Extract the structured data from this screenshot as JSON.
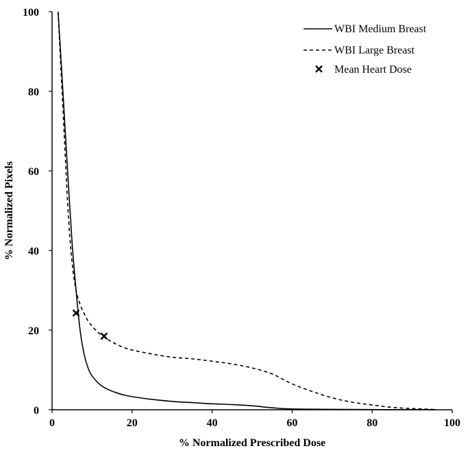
{
  "chart_data": {
    "type": "line",
    "xlabel": "% Normalized Prescribed Dose",
    "ylabel": "% Normalized Pixels",
    "xlim": [
      0,
      100
    ],
    "ylim": [
      0,
      100
    ],
    "x_ticks": [
      "0",
      "20",
      "40",
      "60",
      "80",
      "100"
    ],
    "y_ticks": [
      "0",
      "20",
      "40",
      "60",
      "80",
      "100"
    ],
    "grid": false,
    "legend_position": "top-right",
    "series": [
      {
        "name": "WBI Medium Breast",
        "line_style": "solid",
        "color": "#000000",
        "x": [
          1.5,
          2,
          3,
          4,
          5,
          6,
          7,
          8,
          9,
          10,
          12,
          14,
          16,
          18,
          20,
          25,
          30,
          35,
          40,
          45,
          50,
          55,
          60,
          70,
          80,
          90,
          96
        ],
        "y": [
          100,
          92,
          75,
          58,
          42,
          30,
          20,
          14,
          10.5,
          8.5,
          6.3,
          5.1,
          4.3,
          3.7,
          3.3,
          2.6,
          2.1,
          1.8,
          1.5,
          1.3,
          1.0,
          0.5,
          0.2,
          0.1,
          0.05,
          0.02,
          0
        ]
      },
      {
        "name": "WBI Large Breast",
        "line_style": "dashed",
        "color": "#000000",
        "x": [
          1.5,
          2,
          3,
          4,
          5,
          6,
          7,
          8,
          9,
          10,
          11,
          12,
          13,
          14,
          16,
          18,
          20,
          25,
          30,
          35,
          40,
          45,
          50,
          55,
          60,
          65,
          70,
          75,
          80,
          85,
          90,
          95,
          96
        ],
        "y": [
          100,
          90,
          70,
          50,
          37,
          30,
          26.5,
          24.2,
          22.3,
          21,
          19.9,
          19,
          18.3,
          17.6,
          16.5,
          15.6,
          15,
          14,
          13.2,
          12.8,
          12.2,
          11.5,
          10.5,
          9,
          6.5,
          4.6,
          3.0,
          1.9,
          1.2,
          0.6,
          0.3,
          0.1,
          0
        ]
      }
    ],
    "markers": {
      "name": "Mean Heart Dose",
      "symbol": "x",
      "points": [
        {
          "x": 6,
          "y": 24.3
        },
        {
          "x": 13,
          "y": 18.5
        }
      ]
    }
  }
}
